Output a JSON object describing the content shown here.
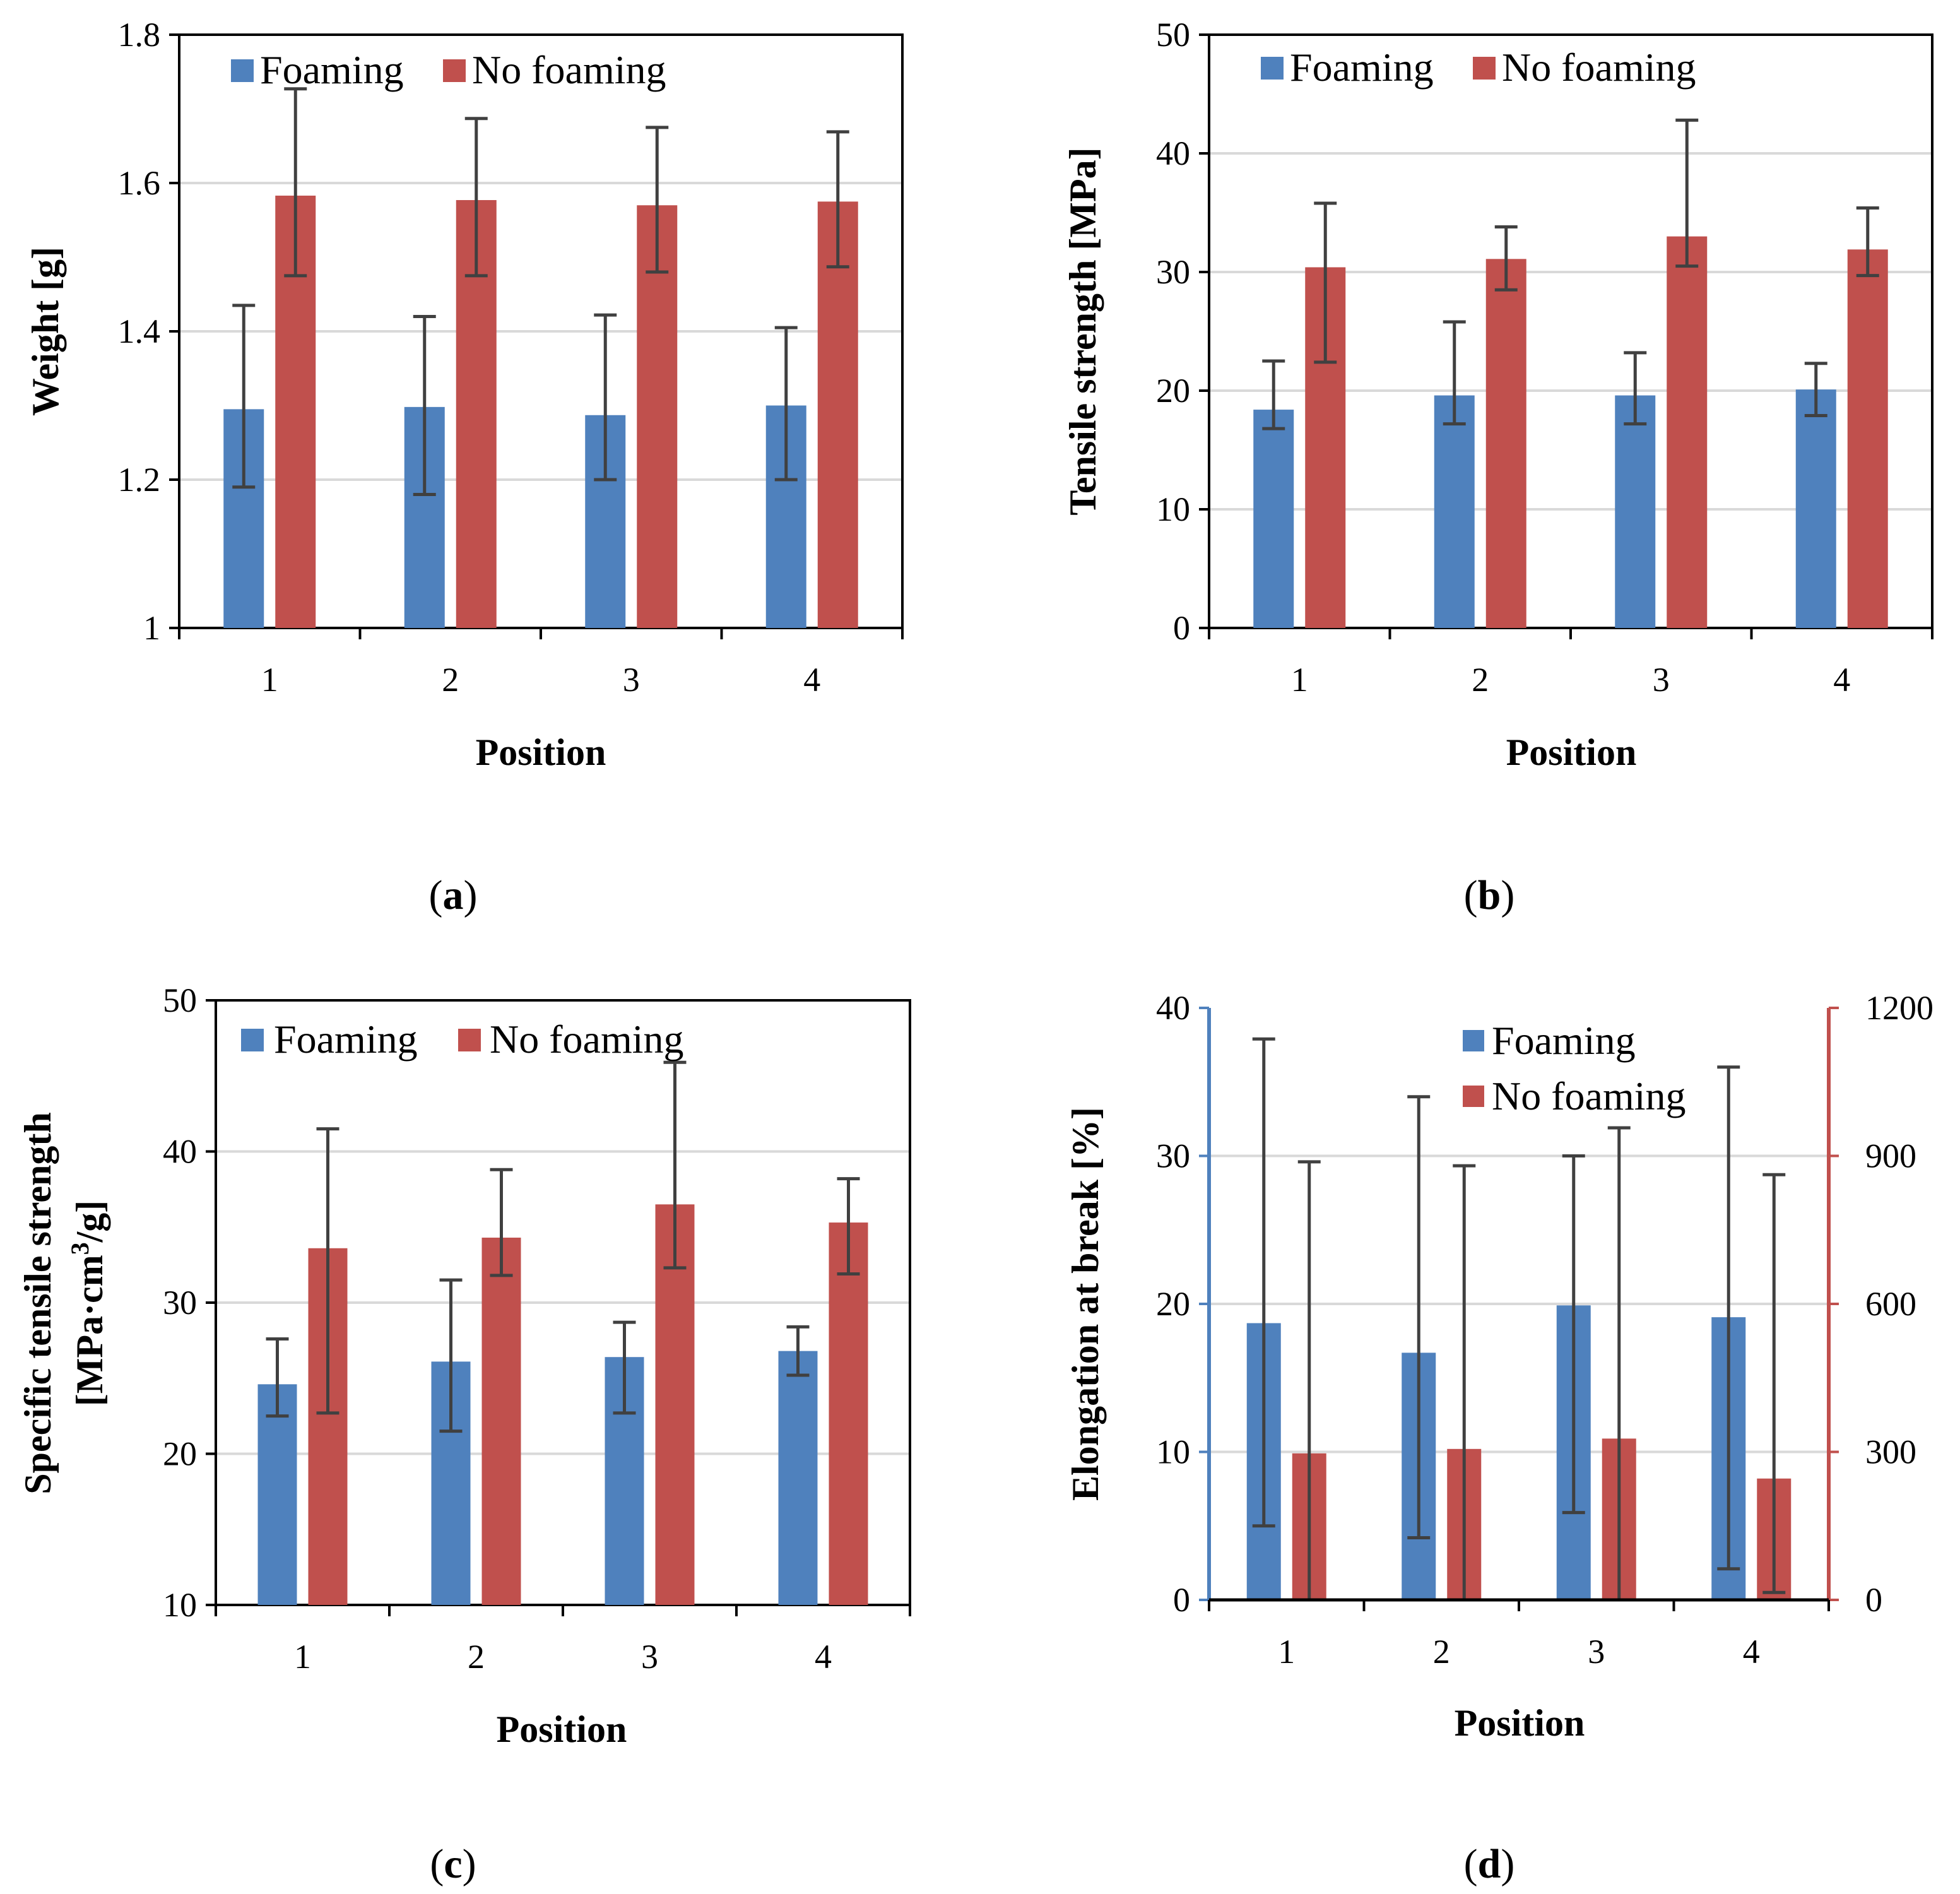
{
  "colors": {
    "foaming": "#4F81BD",
    "no_foaming": "#C0504D",
    "grid": "#D9D9D9",
    "error_bar": "#404040",
    "axis": "#000000"
  },
  "chart_data": [
    {
      "id": "a",
      "type": "bar",
      "caption_letter": "a",
      "categories": [
        "1",
        "2",
        "3",
        "4"
      ],
      "xlabel": "Position",
      "ylabel": "Weight [g]",
      "ylim": [
        1,
        1.8
      ],
      "yticks": [
        "1",
        "1.2",
        "1.4",
        "1.6",
        "1.8"
      ],
      "yticks_values": [
        1,
        1.2,
        1.4,
        1.6,
        1.8
      ],
      "grid": true,
      "legend": "top",
      "series": [
        {
          "name": "Foaming",
          "values": [
            1.295,
            1.298,
            1.287,
            1.3
          ],
          "error_low": [
            1.19,
            1.18,
            1.2,
            1.2
          ],
          "error_high": [
            1.435,
            1.42,
            1.422,
            1.405
          ]
        },
        {
          "name": "No foaming",
          "values": [
            1.583,
            1.577,
            1.57,
            1.575
          ],
          "error_low": [
            1.475,
            1.475,
            1.48,
            1.487
          ],
          "error_high": [
            1.727,
            1.687,
            1.675,
            1.669
          ]
        }
      ]
    },
    {
      "id": "b",
      "type": "bar",
      "caption_letter": "b",
      "categories": [
        "1",
        "2",
        "3",
        "4"
      ],
      "xlabel": "Position",
      "ylabel": "Tensile strength [MPa]",
      "ylim": [
        0,
        50
      ],
      "yticks": [
        "0",
        "10",
        "20",
        "30",
        "40",
        "50"
      ],
      "yticks_values": [
        0,
        10,
        20,
        30,
        40,
        50
      ],
      "grid": true,
      "legend": "top",
      "series": [
        {
          "name": "Foaming",
          "values": [
            18.4,
            19.6,
            19.6,
            20.1
          ],
          "error_low": [
            16.8,
            17.2,
            17.2,
            17.9
          ],
          "error_high": [
            22.5,
            25.8,
            23.2,
            22.3
          ]
        },
        {
          "name": "No foaming",
          "values": [
            30.4,
            31.1,
            33.0,
            31.9
          ],
          "error_low": [
            22.4,
            28.5,
            30.5,
            29.7
          ],
          "error_high": [
            35.8,
            33.8,
            42.8,
            35.4
          ]
        }
      ]
    },
    {
      "id": "c",
      "type": "bar",
      "caption_letter": "c",
      "categories": [
        "1",
        "2",
        "3",
        "4"
      ],
      "xlabel": "Position",
      "ylabel_line1": "Specific tensile strength",
      "ylabel_line2_pre": "[MPa·cm",
      "ylabel_line2_sup": "3",
      "ylabel_line2_post": "/g]",
      "ylim": [
        10,
        50
      ],
      "yticks": [
        "10",
        "20",
        "30",
        "40",
        "50"
      ],
      "yticks_values": [
        10,
        20,
        30,
        40,
        50
      ],
      "grid": true,
      "legend": "top",
      "series": [
        {
          "name": "Foaming",
          "values": [
            24.6,
            26.1,
            26.4,
            26.8
          ],
          "error_low": [
            22.5,
            21.5,
            22.7,
            25.2
          ],
          "error_high": [
            27.6,
            31.5,
            28.7,
            28.4
          ]
        },
        {
          "name": "No foaming",
          "values": [
            33.6,
            34.3,
            36.5,
            35.3
          ],
          "error_low": [
            22.7,
            31.8,
            32.3,
            31.9
          ],
          "error_high": [
            41.5,
            38.8,
            45.9,
            38.2
          ]
        }
      ]
    },
    {
      "id": "d",
      "type": "bar",
      "caption_letter": "d",
      "categories": [
        "1",
        "2",
        "3",
        "4"
      ],
      "xlabel": "Position",
      "ylabel": "Elongation at break [%]",
      "ylim": [
        0,
        40
      ],
      "yticks": [
        "0",
        "10",
        "20",
        "30",
        "40"
      ],
      "yticks_values": [
        0,
        10,
        20,
        30,
        40
      ],
      "y2lim": [
        0,
        1200
      ],
      "y2ticks": [
        "0",
        "300",
        "600",
        "900",
        "1200"
      ],
      "y2ticks_values": [
        0,
        300,
        600,
        900,
        1200
      ],
      "grid": true,
      "legend": "top-right",
      "series": [
        {
          "name": "Foaming",
          "axis": "left",
          "values": [
            18.7,
            16.7,
            19.9,
            19.1
          ],
          "error_low": [
            5.0,
            4.2,
            5.9,
            2.1
          ],
          "error_high": [
            37.9,
            34.0,
            30.0,
            36.0
          ]
        },
        {
          "name": "No foaming",
          "axis": "right",
          "values": [
            297,
            306,
            327,
            246
          ],
          "error_low": [
            0,
            0,
            0,
            15
          ],
          "error_high": [
            888,
            880,
            957,
            862
          ]
        }
      ]
    }
  ]
}
